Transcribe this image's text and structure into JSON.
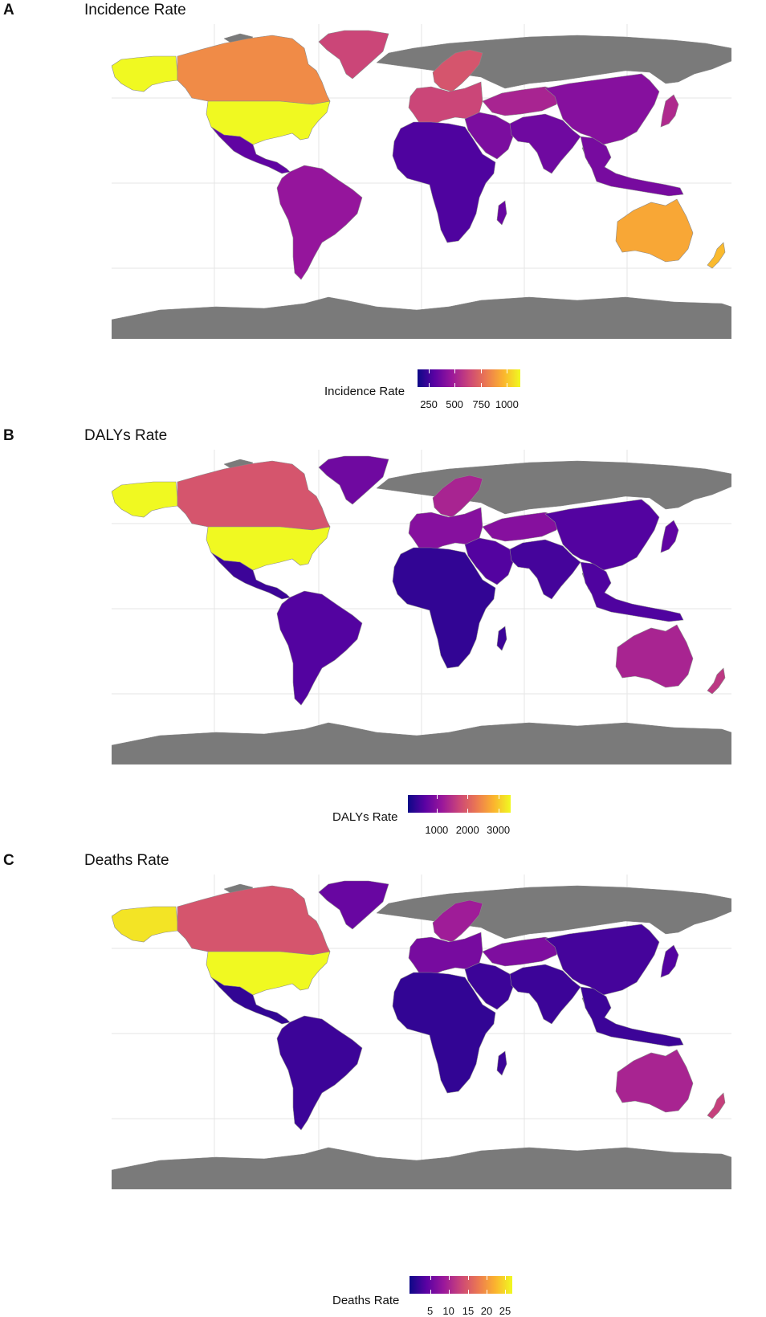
{
  "colors": {
    "ocean": "#ffffff",
    "no_data": "#7a7a7a",
    "grid": "#e6e6e6",
    "border": "#8a8a8a",
    "scale": [
      "#0d0887",
      "#5b02a3",
      "#9a179b",
      "#cb4678",
      "#eb7852",
      "#fbb32f",
      "#f0f921"
    ]
  },
  "panels": [
    {
      "letter": "A",
      "title": "Incidence Rate",
      "legend_title": "Incidence Rate",
      "legend_ticks": [
        "250",
        "500",
        "750",
        "1000"
      ],
      "region_levels": {
        "usa": 1.0,
        "alaska": 1.0,
        "canada": 0.72,
        "greenland": 0.5,
        "mexico_ca": 0.18,
        "south_america": 0.32,
        "europe": 0.5,
        "scandinavia": 0.55,
        "africa": 0.14,
        "middle_east": 0.25,
        "south_asia": 0.22,
        "china": 0.28,
        "central_asia": 0.38,
        "southeast_asia": 0.24,
        "japan": 0.4,
        "australia": 0.8,
        "new_zealand": 0.85,
        "madagascar": 0.2
      }
    },
    {
      "letter": "B",
      "title": "DALYs Rate",
      "legend_title": "DALYs Rate",
      "legend_ticks": [
        "1000",
        "2000",
        "3000"
      ],
      "region_levels": {
        "usa": 1.0,
        "alaska": 1.0,
        "canada": 0.55,
        "greenland": 0.22,
        "mexico_ca": 0.1,
        "south_america": 0.15,
        "europe": 0.28,
        "scandinavia": 0.38,
        "africa": 0.08,
        "middle_east": 0.15,
        "south_asia": 0.12,
        "china": 0.15,
        "central_asia": 0.28,
        "southeast_asia": 0.14,
        "japan": 0.18,
        "australia": 0.38,
        "new_zealand": 0.45,
        "madagascar": 0.1
      }
    },
    {
      "letter": "C",
      "title": "Deaths Rate",
      "legend_title": "Deaths Rate",
      "legend_ticks": [
        "5",
        "10",
        "15",
        "20",
        "25"
      ],
      "region_levels": {
        "usa": 1.0,
        "alaska": 0.95,
        "canada": 0.55,
        "greenland": 0.2,
        "mexico_ca": 0.08,
        "south_america": 0.1,
        "europe": 0.24,
        "scandinavia": 0.35,
        "africa": 0.08,
        "middle_east": 0.1,
        "south_asia": 0.1,
        "china": 0.12,
        "central_asia": 0.26,
        "southeast_asia": 0.1,
        "japan": 0.15,
        "australia": 0.38,
        "new_zealand": 0.48,
        "madagascar": 0.1
      }
    }
  ]
}
